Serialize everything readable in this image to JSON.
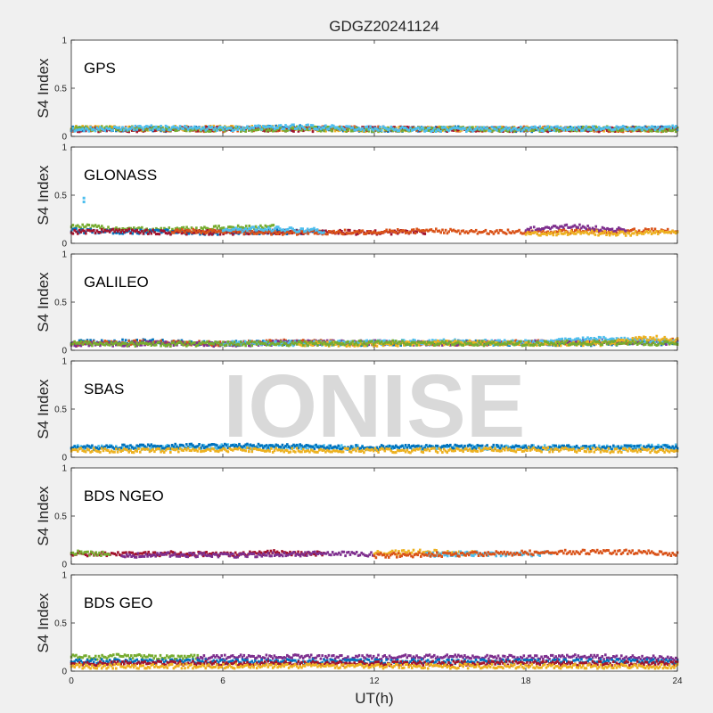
{
  "figure": {
    "title": "GDGZ20241124",
    "watermark": "IONISE",
    "xlabel": "UT(h)",
    "ylabel": "S4 Index",
    "xticks": [
      "0",
      "6",
      "12",
      "18",
      "24"
    ],
    "yticks": [
      "0",
      "0.5",
      "1"
    ]
  },
  "colors": {
    "background": "#f0f0f0",
    "axes": "#ffffff",
    "watermark": "#d9d9d9",
    "series": [
      "#0072BD",
      "#D95319",
      "#EDB120",
      "#7E2F8E",
      "#77AC30",
      "#4DBEEE",
      "#A2142F"
    ]
  },
  "chart_data": [
    {
      "type": "scatter",
      "panel_label": "GPS",
      "xlim": [
        0,
        24
      ],
      "ylim": [
        0,
        1
      ],
      "series": [
        {
          "color": "#0072BD",
          "x": [
            0,
            3,
            6,
            9,
            12,
            15,
            18,
            21,
            24
          ],
          "y": [
            0.08,
            0.07,
            0.08,
            0.09,
            0.07,
            0.08,
            0.07,
            0.08,
            0.08
          ]
        },
        {
          "color": "#D95319",
          "x": [
            0,
            3,
            6,
            9,
            12,
            15,
            18,
            21,
            24
          ],
          "y": [
            0.07,
            0.08,
            0.07,
            0.08,
            0.08,
            0.07,
            0.08,
            0.07,
            0.07
          ]
        },
        {
          "color": "#EDB120",
          "x": [
            0,
            3,
            6,
            9,
            12,
            15,
            18,
            21,
            24
          ],
          "y": [
            0.09,
            0.08,
            0.09,
            0.08,
            0.07,
            0.08,
            0.08,
            0.07,
            0.08
          ]
        },
        {
          "color": "#A2142F",
          "x": [
            0,
            3,
            6,
            9,
            12,
            15,
            18,
            21,
            24
          ],
          "y": [
            0.07,
            0.07,
            0.08,
            0.07,
            0.08,
            0.07,
            0.07,
            0.07,
            0.08
          ]
        },
        {
          "color": "#77AC30",
          "x": [
            0,
            3,
            6,
            9,
            12,
            15,
            18,
            21,
            24
          ],
          "y": [
            0.08,
            0.08,
            0.07,
            0.08,
            0.07,
            0.08,
            0.07,
            0.08,
            0.07
          ]
        },
        {
          "color": "#4DBEEE",
          "x": [
            0,
            3,
            6,
            9,
            12,
            15,
            18,
            21,
            24
          ],
          "y": [
            0.07,
            0.09,
            0.08,
            0.1,
            0.08,
            0.07,
            0.08,
            0.08,
            0.09
          ]
        }
      ]
    },
    {
      "type": "scatter",
      "panel_label": "GLONASS",
      "xlim": [
        0,
        24
      ],
      "ylim": [
        0,
        1
      ],
      "series": [
        {
          "color": "#77AC30",
          "x": [
            0,
            2,
            4,
            6,
            8
          ],
          "y": [
            0.18,
            0.15,
            0.14,
            0.16,
            0.17
          ]
        },
        {
          "color": "#0072BD",
          "x": [
            0,
            2,
            4,
            6,
            8,
            10
          ],
          "y": [
            0.13,
            0.12,
            0.12,
            0.11,
            0.12,
            0.11
          ]
        },
        {
          "color": "#A2142F",
          "x": [
            0,
            2,
            4,
            10,
            12,
            14
          ],
          "y": [
            0.12,
            0.13,
            0.11,
            0.12,
            0.11,
            0.12
          ]
        },
        {
          "color": "#D95319",
          "x": [
            4,
            6,
            8,
            12,
            14,
            16,
            18,
            24
          ],
          "y": [
            0.12,
            0.13,
            0.11,
            0.12,
            0.13,
            0.12,
            0.12,
            0.13
          ]
        },
        {
          "color": "#4DBEEE",
          "x": [
            0.5,
            0.5,
            6,
            8,
            10
          ],
          "y": [
            0.47,
            0.43,
            0.14,
            0.15,
            0.13
          ]
        },
        {
          "color": "#7E2F8E",
          "x": [
            18,
            19,
            20,
            21,
            22
          ],
          "y": [
            0.14,
            0.16,
            0.18,
            0.15,
            0.14
          ]
        },
        {
          "color": "#EDB120",
          "x": [
            18,
            20,
            22,
            24
          ],
          "y": [
            0.1,
            0.11,
            0.1,
            0.11
          ]
        }
      ]
    },
    {
      "type": "scatter",
      "panel_label": "GALILEO",
      "xlim": [
        0,
        24
      ],
      "ylim": [
        0,
        1
      ],
      "series": [
        {
          "color": "#0072BD",
          "x": [
            0,
            3,
            6,
            9,
            12,
            15,
            18,
            21,
            24
          ],
          "y": [
            0.08,
            0.09,
            0.07,
            0.08,
            0.07,
            0.08,
            0.07,
            0.07,
            0.08
          ]
        },
        {
          "color": "#D95319",
          "x": [
            0,
            3,
            6,
            9,
            12,
            15,
            18,
            21,
            24
          ],
          "y": [
            0.07,
            0.08,
            0.07,
            0.09,
            0.07,
            0.07,
            0.08,
            0.08,
            0.1
          ]
        },
        {
          "color": "#7E2F8E",
          "x": [
            0,
            3,
            6,
            9,
            12,
            15,
            18,
            21,
            24
          ],
          "y": [
            0.06,
            0.07,
            0.06,
            0.08,
            0.08,
            0.07,
            0.08,
            0.09,
            0.08
          ]
        },
        {
          "color": "#4DBEEE",
          "x": [
            6,
            9,
            12,
            15,
            18,
            21,
            24
          ],
          "y": [
            0.08,
            0.07,
            0.08,
            0.09,
            0.08,
            0.12,
            0.09
          ]
        },
        {
          "color": "#EDB120",
          "x": [
            9,
            12,
            15,
            18,
            21,
            23,
            24
          ],
          "y": [
            0.07,
            0.06,
            0.08,
            0.07,
            0.07,
            0.13,
            0.1
          ]
        },
        {
          "color": "#77AC30",
          "x": [
            0,
            3,
            6,
            9,
            12,
            15,
            18,
            21,
            24
          ],
          "y": [
            0.07,
            0.06,
            0.07,
            0.07,
            0.08,
            0.07,
            0.07,
            0.08,
            0.07
          ]
        }
      ]
    },
    {
      "type": "scatter",
      "panel_label": "SBAS",
      "xlim": [
        0,
        24
      ],
      "ylim": [
        0,
        1
      ],
      "series": [
        {
          "color": "#4DBEEE",
          "x": [
            0,
            3,
            6,
            9,
            12,
            15,
            18,
            21,
            24
          ],
          "y": [
            0.1,
            0.1,
            0.11,
            0.1,
            0.1,
            0.1,
            0.1,
            0.1,
            0.11
          ]
        },
        {
          "color": "#0072BD",
          "x": [
            0,
            3,
            6,
            9,
            12,
            15,
            18,
            21,
            24
          ],
          "y": [
            0.1,
            0.11,
            0.12,
            0.11,
            0.1,
            0.11,
            0.1,
            0.1,
            0.1
          ]
        },
        {
          "color": "#EDB120",
          "x": [
            0,
            3,
            6,
            9,
            12,
            15,
            18,
            21,
            24
          ],
          "y": [
            0.07,
            0.07,
            0.08,
            0.07,
            0.07,
            0.07,
            0.08,
            0.07,
            0.07
          ]
        }
      ]
    },
    {
      "type": "scatter",
      "panel_label": "BDS NGEO",
      "xlim": [
        0,
        24
      ],
      "ylim": [
        0,
        1
      ],
      "series": [
        {
          "color": "#A2142F",
          "x": [
            0,
            2,
            4,
            6,
            8,
            10
          ],
          "y": [
            0.11,
            0.1,
            0.11,
            0.1,
            0.12,
            0.11
          ]
        },
        {
          "color": "#7E2F8E",
          "x": [
            2,
            4,
            6,
            8,
            10,
            12
          ],
          "y": [
            0.09,
            0.1,
            0.09,
            0.1,
            0.11,
            0.1
          ]
        },
        {
          "color": "#77AC30",
          "x": [
            0,
            1,
            1.5
          ],
          "y": [
            0.12,
            0.11,
            0.1
          ]
        },
        {
          "color": "#EDB120",
          "x": [
            12,
            14,
            16
          ],
          "y": [
            0.11,
            0.13,
            0.11
          ]
        },
        {
          "color": "#4DBEEE",
          "x": [
            14,
            16,
            18,
            19
          ],
          "y": [
            0.1,
            0.11,
            0.1,
            0.11
          ]
        },
        {
          "color": "#D95319",
          "x": [
            12,
            19,
            21,
            23,
            24
          ],
          "y": [
            0.09,
            0.12,
            0.13,
            0.12,
            0.1
          ]
        }
      ]
    },
    {
      "type": "scatter",
      "panel_label": "BDS GEO",
      "xlim": [
        0,
        24
      ],
      "ylim": [
        0,
        1
      ],
      "series": [
        {
          "color": "#77AC30",
          "x": [
            0,
            1,
            2,
            3,
            4,
            5
          ],
          "y": [
            0.15,
            0.14,
            0.16,
            0.15,
            0.14,
            0.15
          ]
        },
        {
          "color": "#7E2F8E",
          "x": [
            5,
            8,
            11,
            14,
            17,
            20,
            23,
            24
          ],
          "y": [
            0.14,
            0.15,
            0.14,
            0.15,
            0.14,
            0.15,
            0.14,
            0.13
          ]
        },
        {
          "color": "#0072BD",
          "x": [
            0,
            4,
            8,
            12,
            16,
            20,
            24
          ],
          "y": [
            0.1,
            0.1,
            0.1,
            0.1,
            0.1,
            0.1,
            0.1
          ]
        },
        {
          "color": "#A2142F",
          "x": [
            0,
            4,
            8,
            12,
            16,
            20,
            24
          ],
          "y": [
            0.08,
            0.08,
            0.08,
            0.08,
            0.08,
            0.08,
            0.08
          ]
        },
        {
          "color": "#EDB120",
          "x": [
            0,
            4,
            8,
            12,
            16,
            20,
            24
          ],
          "y": [
            0.05,
            0.05,
            0.05,
            0.05,
            0.05,
            0.05,
            0.05
          ]
        }
      ]
    }
  ]
}
